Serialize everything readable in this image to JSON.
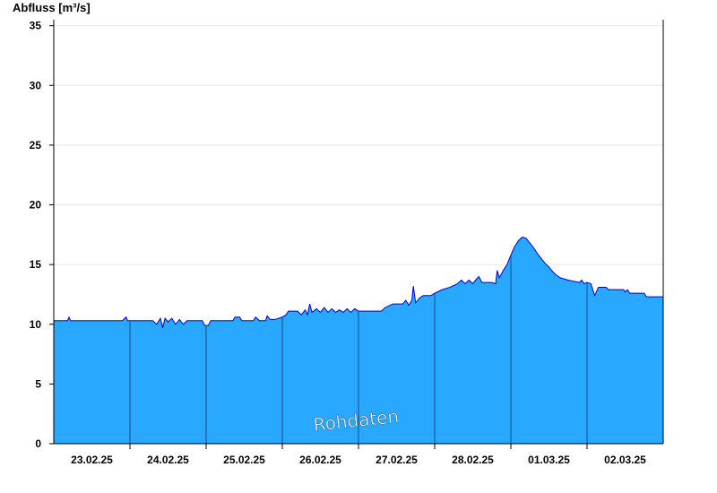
{
  "chart_data": {
    "type": "area",
    "title": "",
    "ylabel": "Abfluss [m³/s]",
    "xlabel": "",
    "ylim": [
      0,
      35.5
    ],
    "xlim": [
      0,
      8
    ],
    "yticks": [
      0,
      5,
      10,
      15,
      20,
      25,
      30,
      35
    ],
    "grid": true,
    "area_color": "#29a8ff",
    "line_color": "#0000cc",
    "separator_color": "#1a4a80",
    "grid_color": "#e6e6e6",
    "watermark": "Rohdaten",
    "day_labels": [
      {
        "x": 0.5,
        "label": "23.02.25"
      },
      {
        "x": 1.5,
        "label": "24.02.25"
      },
      {
        "x": 2.5,
        "label": "25.02.25"
      },
      {
        "x": 3.5,
        "label": "26.02.25"
      },
      {
        "x": 4.5,
        "label": "27.02.25"
      },
      {
        "x": 5.5,
        "label": "28.02.25"
      },
      {
        "x": 6.5,
        "label": "01.03.25"
      },
      {
        "x": 7.5,
        "label": "02.03.25"
      }
    ],
    "day_separators": [
      1,
      2,
      3,
      4,
      5,
      6,
      7
    ],
    "series": [
      {
        "points": [
          [
            0.0,
            10.3
          ],
          [
            0.18,
            10.3
          ],
          [
            0.2,
            10.6
          ],
          [
            0.22,
            10.3
          ],
          [
            0.9,
            10.3
          ],
          [
            0.95,
            10.6
          ],
          [
            0.97,
            10.3
          ],
          [
            1.3,
            10.3
          ],
          [
            1.35,
            10.0
          ],
          [
            1.4,
            10.5
          ],
          [
            1.43,
            9.7
          ],
          [
            1.46,
            10.5
          ],
          [
            1.5,
            10.2
          ],
          [
            1.55,
            10.5
          ],
          [
            1.6,
            10.0
          ],
          [
            1.65,
            10.4
          ],
          [
            1.7,
            10.0
          ],
          [
            1.75,
            10.3
          ],
          [
            1.85,
            10.3
          ],
          [
            1.95,
            10.3
          ],
          [
            1.98,
            9.9
          ],
          [
            2.03,
            9.9
          ],
          [
            2.06,
            10.3
          ],
          [
            2.35,
            10.3
          ],
          [
            2.38,
            10.6
          ],
          [
            2.44,
            10.6
          ],
          [
            2.47,
            10.3
          ],
          [
            2.62,
            10.3
          ],
          [
            2.65,
            10.6
          ],
          [
            2.7,
            10.3
          ],
          [
            2.78,
            10.3
          ],
          [
            2.8,
            10.7
          ],
          [
            2.84,
            10.4
          ],
          [
            2.9,
            10.4
          ],
          [
            3.0,
            10.6
          ],
          [
            3.05,
            10.8
          ],
          [
            3.08,
            11.1
          ],
          [
            3.2,
            11.1
          ],
          [
            3.25,
            10.8
          ],
          [
            3.3,
            11.2
          ],
          [
            3.33,
            10.8
          ],
          [
            3.36,
            11.7
          ],
          [
            3.39,
            11.0
          ],
          [
            3.45,
            11.3
          ],
          [
            3.5,
            11.0
          ],
          [
            3.55,
            11.4
          ],
          [
            3.6,
            11.0
          ],
          [
            3.65,
            11.3
          ],
          [
            3.7,
            11.0
          ],
          [
            3.75,
            11.2
          ],
          [
            3.8,
            11.0
          ],
          [
            3.85,
            11.3
          ],
          [
            3.9,
            11.0
          ],
          [
            3.95,
            11.3
          ],
          [
            4.0,
            11.1
          ],
          [
            4.3,
            11.1
          ],
          [
            4.35,
            11.4
          ],
          [
            4.45,
            11.7
          ],
          [
            4.58,
            11.7
          ],
          [
            4.62,
            12.0
          ],
          [
            4.66,
            11.6
          ],
          [
            4.7,
            12.0
          ],
          [
            4.72,
            13.2
          ],
          [
            4.75,
            11.8
          ],
          [
            4.8,
            12.2
          ],
          [
            4.85,
            12.4
          ],
          [
            4.95,
            12.4
          ],
          [
            5.0,
            12.6
          ],
          [
            5.1,
            12.9
          ],
          [
            5.2,
            13.1
          ],
          [
            5.3,
            13.4
          ],
          [
            5.35,
            13.7
          ],
          [
            5.4,
            13.4
          ],
          [
            5.45,
            13.7
          ],
          [
            5.5,
            13.4
          ],
          [
            5.55,
            13.8
          ],
          [
            5.58,
            14.0
          ],
          [
            5.62,
            13.5
          ],
          [
            5.75,
            13.5
          ],
          [
            5.8,
            13.4
          ],
          [
            5.82,
            14.5
          ],
          [
            5.85,
            13.9
          ],
          [
            5.9,
            14.5
          ],
          [
            5.95,
            15.0
          ],
          [
            6.0,
            15.8
          ],
          [
            6.05,
            16.5
          ],
          [
            6.1,
            17.0
          ],
          [
            6.15,
            17.3
          ],
          [
            6.2,
            17.2
          ],
          [
            6.25,
            16.8
          ],
          [
            6.3,
            16.4
          ],
          [
            6.35,
            15.9
          ],
          [
            6.4,
            15.5
          ],
          [
            6.45,
            15.1
          ],
          [
            6.5,
            14.8
          ],
          [
            6.55,
            14.4
          ],
          [
            6.6,
            14.1
          ],
          [
            6.65,
            13.9
          ],
          [
            6.75,
            13.7
          ],
          [
            6.9,
            13.5
          ],
          [
            6.93,
            13.7
          ],
          [
            6.96,
            13.4
          ],
          [
            7.0,
            13.5
          ],
          [
            7.05,
            13.4
          ],
          [
            7.1,
            12.4
          ],
          [
            7.15,
            13.1
          ],
          [
            7.25,
            13.1
          ],
          [
            7.28,
            12.9
          ],
          [
            7.48,
            12.9
          ],
          [
            7.5,
            12.7
          ],
          [
            7.53,
            12.9
          ],
          [
            7.56,
            12.6
          ],
          [
            7.75,
            12.6
          ],
          [
            7.78,
            12.3
          ],
          [
            8.0,
            12.3
          ]
        ]
      }
    ]
  }
}
